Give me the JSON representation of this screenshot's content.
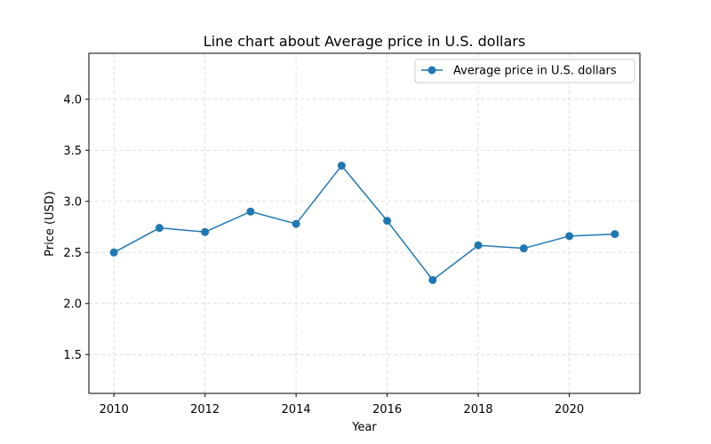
{
  "chart_data": {
    "type": "line",
    "title": "Line chart about Average price in U.S. dollars",
    "xlabel": "Year",
    "ylabel": "Price (USD)",
    "x": [
      2010,
      2011,
      2012,
      2013,
      2014,
      2015,
      2016,
      2017,
      2018,
      2019,
      2020,
      2021
    ],
    "series": [
      {
        "name": "Average price in U.S. dollars",
        "values": [
          2.5,
          2.74,
          2.7,
          2.9,
          2.78,
          3.35,
          2.81,
          2.23,
          2.57,
          2.54,
          2.66,
          2.68
        ]
      }
    ],
    "xticks": [
      "2010",
      "2012",
      "2014",
      "2016",
      "2018",
      "2020"
    ],
    "yticks": [
      "1.5",
      "2.0",
      "2.5",
      "3.0",
      "3.5",
      "4.0"
    ],
    "xlim": [
      2009.45,
      2021.55
    ],
    "ylim": [
      1.12,
      4.45
    ],
    "grid": true,
    "legend_position": "top-right",
    "color": "#1f77b4"
  }
}
